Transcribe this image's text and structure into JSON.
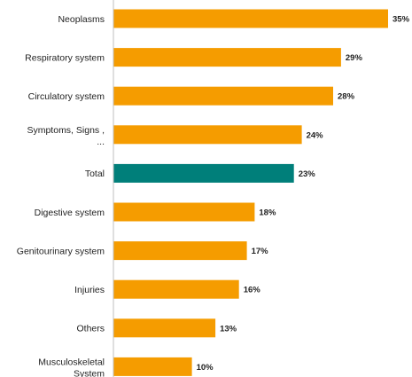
{
  "chart_data": {
    "type": "bar",
    "orientation": "horizontal",
    "title": "",
    "xlabel": "",
    "ylabel": "",
    "categories": [
      "Neoplasms",
      "Respiratory system",
      "Circulatory system",
      "Symptoms, Signs , ...",
      "Total",
      "Digestive system",
      "Genitourinary system",
      "Injuries",
      "Others",
      "Musculoskeletal System"
    ],
    "values": [
      35,
      29,
      28,
      24,
      23,
      18,
      17,
      16,
      13,
      10
    ],
    "value_labels": [
      "35%",
      "29%",
      "28%",
      "24%",
      "23%",
      "18%",
      "17%",
      "16%",
      "13%",
      "10%"
    ],
    "bar_colors": [
      "#f59c00",
      "#f59c00",
      "#f59c00",
      "#f59c00",
      "#007f7a",
      "#f59c00",
      "#f59c00",
      "#f59c00",
      "#f59c00",
      "#f59c00"
    ],
    "xlim": [
      0,
      35
    ],
    "grid": false,
    "legend": "none"
  }
}
